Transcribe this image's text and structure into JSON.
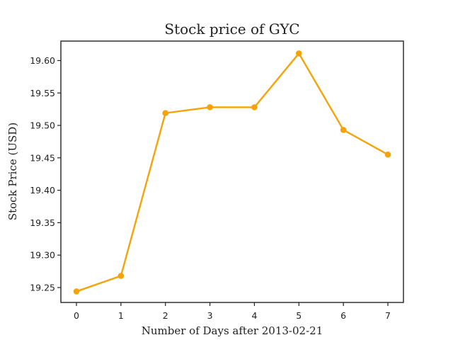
{
  "chart_data": {
    "type": "line",
    "title": "Stock price of GYC",
    "xlabel": "Number of Days after 2013-02-21",
    "ylabel": "Stock Price (USD)",
    "x": [
      0,
      1,
      2,
      3,
      4,
      5,
      6,
      7
    ],
    "x_ticks": [
      "0",
      "1",
      "2",
      "3",
      "4",
      "5",
      "6",
      "7"
    ],
    "y_ticks": [
      "19.25",
      "19.30",
      "19.35",
      "19.40",
      "19.45",
      "19.50",
      "19.55",
      "19.60"
    ],
    "xlim": [
      -0.35,
      7.35
    ],
    "ylim": [
      19.227,
      19.63
    ],
    "grid": false,
    "legend": "none",
    "series": [
      {
        "values": [
          19.244,
          19.268,
          19.519,
          19.528,
          19.528,
          19.611,
          19.493,
          19.455
        ],
        "color": "#f5a30a",
        "marker": "circle"
      }
    ]
  }
}
